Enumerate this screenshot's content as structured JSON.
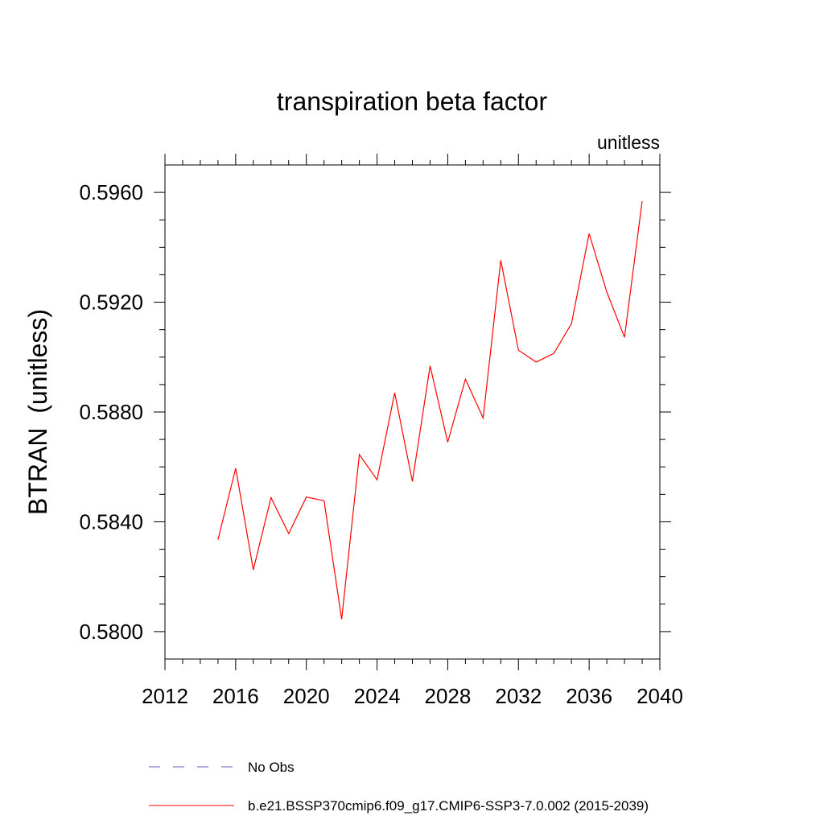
{
  "chart_data": {
    "type": "line",
    "title": "transpiration beta factor",
    "units_label": "unitless",
    "ylabel": "BTRAN  (unitless)",
    "xlabel": "",
    "xlim": [
      2012,
      2040
    ],
    "ylim": [
      0.579,
      0.597
    ],
    "x_ticks": [
      2012,
      2016,
      2020,
      2024,
      2028,
      2032,
      2036,
      2040
    ],
    "y_ticks": [
      0.58,
      0.584,
      0.588,
      0.592,
      0.596
    ],
    "y_tick_labels": [
      "0.5800",
      "0.5840",
      "0.5880",
      "0.5920",
      "0.5960"
    ],
    "grid": false,
    "series": [
      {
        "name": "b.e21.BSSP370cmip6.f09_g17.CMIP6-SSP3-7.0.002 (2015-2039)",
        "color": "#ff0000",
        "x": [
          2015,
          2016,
          2017,
          2018,
          2019,
          2020,
          2021,
          2022,
          2023,
          2024,
          2025,
          2026,
          2027,
          2028,
          2029,
          2030,
          2031,
          2032,
          2033,
          2034,
          2035,
          2036,
          2037,
          2038,
          2039
        ],
        "values": [
          0.58335,
          0.58595,
          0.58225,
          0.58488,
          0.58357,
          0.5849,
          0.58477,
          0.58045,
          0.58645,
          0.58553,
          0.5887,
          0.58547,
          0.58968,
          0.5869,
          0.5892,
          0.58778,
          0.59353,
          0.59025,
          0.58982,
          0.59013,
          0.59122,
          0.5945,
          0.59237,
          0.59072,
          0.59568
        ]
      }
    ],
    "legend": [
      {
        "label": "No Obs",
        "style": "dashed",
        "color": "#6b5fbf"
      },
      {
        "label": "b.e21.BSSP370cmip6.f09_g17.CMIP6-SSP3-7.0.002 (2015-2039)",
        "style": "solid",
        "color": "#ff0000"
      }
    ]
  }
}
